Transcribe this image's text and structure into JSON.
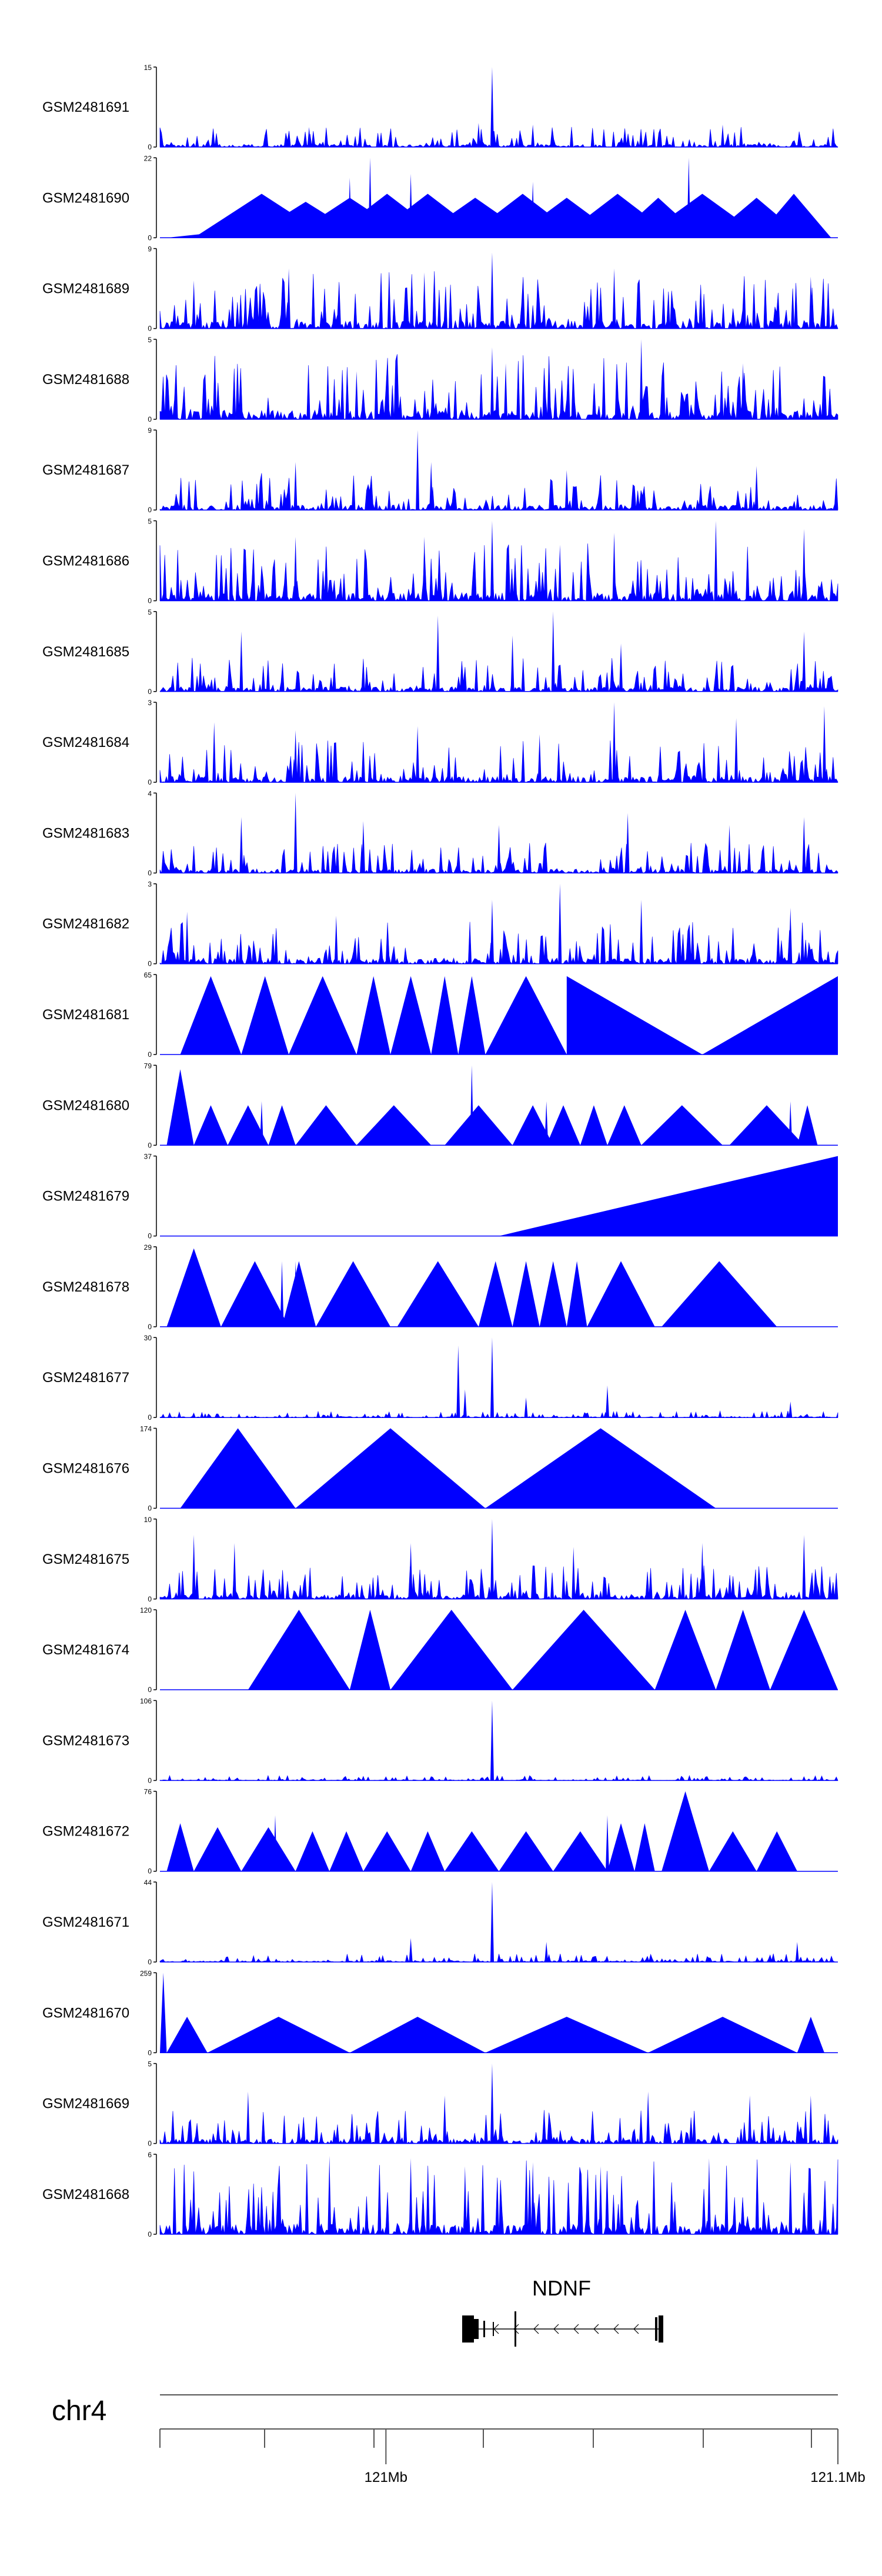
{
  "chart_data": {
    "type": "area",
    "title": "",
    "fill_color": "#0000ff",
    "chromosome": "chr4",
    "xlim_mb": [
      120.95,
      121.1
    ],
    "x_ticks": [
      {
        "value": 121.0,
        "label": "121Mb"
      },
      {
        "value": 121.1,
        "label": "121.1Mb"
      }
    ],
    "gene": {
      "name": "NDNF",
      "strand": "-"
    },
    "tracks": [
      {
        "name": "GSM2481691",
        "ymin": "0",
        "ymax": "15",
        "max": 15,
        "style": "dense",
        "level": 0.12,
        "spikes": [
          [
            0.49,
            1.0
          ],
          [
            0.47,
            0.3
          ],
          [
            0.55,
            0.28
          ],
          [
            0.22,
            0.25
          ],
          [
            0.83,
            0.28
          ]
        ]
      },
      {
        "name": "GSM2481690",
        "ymin": "0",
        "ymax": "22",
        "max": 22,
        "style": "tri",
        "peaks": [
          [
            0.01,
            0.12,
            0.05
          ],
          [
            0.05,
            0.25,
            0.55
          ],
          [
            0.13,
            0.3,
            0.45
          ],
          [
            0.19,
            0.37,
            0.5
          ],
          [
            0.25,
            0.42,
            0.55
          ],
          [
            0.31,
            0.48,
            0.55
          ],
          [
            0.38,
            0.55,
            0.5
          ],
          [
            0.45,
            0.62,
            0.55
          ],
          [
            0.52,
            0.68,
            0.5
          ],
          [
            0.59,
            0.76,
            0.55
          ],
          [
            0.67,
            0.8,
            0.5
          ],
          [
            0.71,
            0.89,
            0.55
          ],
          [
            0.81,
            0.95,
            0.5
          ],
          [
            0.88,
            0.99,
            0.55
          ]
        ],
        "spikes": [
          [
            0.31,
            1.0
          ],
          [
            0.78,
            1.0
          ],
          [
            0.37,
            0.8
          ],
          [
            0.55,
            0.7
          ],
          [
            0.28,
            0.75
          ]
        ]
      },
      {
        "name": "GSM2481689",
        "ymin": "0",
        "ymax": "9",
        "max": 9,
        "style": "dense",
        "level": 0.35,
        "spikes": [
          [
            0.49,
            0.95
          ],
          [
            0.05,
            0.6
          ],
          [
            0.19,
            0.75
          ],
          [
            0.39,
            0.7
          ],
          [
            0.67,
            0.75
          ],
          [
            0.96,
            0.65
          ]
        ]
      },
      {
        "name": "GSM2481688",
        "ymin": "0",
        "ymax": "5",
        "max": 5,
        "style": "dense",
        "level": 0.4,
        "spikes": [
          [
            0.49,
            0.9
          ],
          [
            0.51,
            0.7
          ],
          [
            0.71,
            1.0
          ],
          [
            0.29,
            0.6
          ],
          [
            0.86,
            0.7
          ]
        ]
      },
      {
        "name": "GSM2481687",
        "ymin": "0",
        "ymax": "9",
        "max": 9,
        "style": "dense",
        "level": 0.22,
        "spikes": [
          [
            0.38,
            1.0
          ],
          [
            0.4,
            0.6
          ],
          [
            0.2,
            0.6
          ],
          [
            0.88,
            0.55
          ],
          [
            0.6,
            0.5
          ]
        ]
      },
      {
        "name": "GSM2481686",
        "ymin": "0",
        "ymax": "5",
        "max": 5,
        "style": "dense",
        "level": 0.35,
        "spikes": [
          [
            0.49,
            1.0
          ],
          [
            0.82,
            1.0
          ],
          [
            0.39,
            0.8
          ],
          [
            0.2,
            0.8
          ],
          [
            0.67,
            0.85
          ],
          [
            0.95,
            0.9
          ],
          [
            0.59,
            0.7
          ]
        ]
      },
      {
        "name": "GSM2481685",
        "ymin": "0",
        "ymax": "5",
        "max": 5,
        "style": "dense",
        "level": 0.2,
        "spikes": [
          [
            0.58,
            1.0
          ],
          [
            0.41,
            0.95
          ],
          [
            0.12,
            0.75
          ],
          [
            0.52,
            0.7
          ],
          [
            0.95,
            0.75
          ],
          [
            0.68,
            0.6
          ]
        ]
      },
      {
        "name": "GSM2481684",
        "ymin": "0",
        "ymax": "3",
        "max": 3,
        "style": "dense",
        "level": 0.25,
        "spikes": [
          [
            0.67,
            1.0
          ],
          [
            0.98,
            0.95
          ],
          [
            0.08,
            0.75
          ],
          [
            0.2,
            0.65
          ],
          [
            0.38,
            0.7
          ],
          [
            0.85,
            0.8
          ],
          [
            0.56,
            0.6
          ]
        ]
      },
      {
        "name": "GSM2481683",
        "ymin": "0",
        "ymax": "4",
        "max": 4,
        "style": "dense",
        "level": 0.18,
        "spikes": [
          [
            0.2,
            1.0
          ],
          [
            0.12,
            0.7
          ],
          [
            0.3,
            0.65
          ],
          [
            0.5,
            0.6
          ],
          [
            0.69,
            0.75
          ],
          [
            0.84,
            0.6
          ],
          [
            0.95,
            0.7
          ]
        ]
      },
      {
        "name": "GSM2481682",
        "ymin": "0",
        "ymax": "3",
        "max": 3,
        "style": "dense",
        "level": 0.25,
        "spikes": [
          [
            0.59,
            1.0
          ],
          [
            0.49,
            0.8
          ],
          [
            0.71,
            0.8
          ],
          [
            0.04,
            0.65
          ],
          [
            0.26,
            0.6
          ],
          [
            0.93,
            0.7
          ]
        ]
      },
      {
        "name": "GSM2481681",
        "ymin": "0",
        "ymax": "65",
        "max": 65,
        "style": "tri",
        "peaks": [
          [
            0.03,
            0.12,
            0.98
          ],
          [
            0.12,
            0.19,
            0.98
          ],
          [
            0.19,
            0.29,
            0.98
          ],
          [
            0.29,
            0.34,
            0.98
          ],
          [
            0.34,
            0.4,
            0.98
          ],
          [
            0.4,
            0.44,
            0.98
          ],
          [
            0.44,
            0.48,
            0.98
          ],
          [
            0.48,
            0.6,
            0.98
          ]
        ],
        "ramps": [
          [
            0.6,
            0.8,
            0.98,
            0
          ],
          [
            0.8,
            1.0,
            0,
            0.98
          ]
        ],
        "spikes": []
      },
      {
        "name": "GSM2481680",
        "ymin": "0",
        "ymax": "79",
        "max": 79,
        "style": "tri",
        "peaks": [
          [
            0.01,
            0.05,
            0.95
          ],
          [
            0.05,
            0.1,
            0.5
          ],
          [
            0.1,
            0.16,
            0.5
          ],
          [
            0.16,
            0.2,
            0.5
          ],
          [
            0.2,
            0.29,
            0.5
          ],
          [
            0.29,
            0.4,
            0.5
          ],
          [
            0.42,
            0.52,
            0.5
          ],
          [
            0.52,
            0.58,
            0.5
          ],
          [
            0.57,
            0.62,
            0.5
          ],
          [
            0.62,
            0.66,
            0.5
          ],
          [
            0.66,
            0.71,
            0.5
          ],
          [
            0.71,
            0.83,
            0.5
          ],
          [
            0.84,
            0.95,
            0.5
          ],
          [
            0.94,
            0.97,
            0.5
          ]
        ],
        "spikes": [
          [
            0.46,
            1.0
          ],
          [
            0.15,
            0.55
          ],
          [
            0.57,
            0.55
          ],
          [
            0.93,
            0.55
          ]
        ]
      },
      {
        "name": "GSM2481679",
        "ymin": "0",
        "ymax": "37",
        "max": 37,
        "style": "tri",
        "peaks": [],
        "ramps": [
          [
            0.5,
            1.0,
            0,
            1.0
          ]
        ],
        "spikes": []
      },
      {
        "name": "GSM2481678",
        "ymin": "0",
        "ymax": "29",
        "max": 29,
        "style": "tri",
        "peaks": [
          [
            0.01,
            0.09,
            0.98
          ],
          [
            0.09,
            0.19,
            0.82
          ],
          [
            0.18,
            0.23,
            0.82
          ],
          [
            0.23,
            0.34,
            0.82
          ],
          [
            0.35,
            0.47,
            0.82
          ],
          [
            0.47,
            0.52,
            0.82
          ],
          [
            0.52,
            0.56,
            0.82
          ],
          [
            0.56,
            0.6,
            0.82
          ],
          [
            0.6,
            0.63,
            0.82
          ],
          [
            0.63,
            0.73,
            0.82
          ],
          [
            0.74,
            0.91,
            0.82
          ]
        ],
        "spikes": [
          [
            0.18,
            0.82
          ],
          [
            0.2,
            0.82
          ]
        ]
      },
      {
        "name": "GSM2481677",
        "ymin": "0",
        "ymax": "30",
        "max": 30,
        "style": "dense",
        "level": 0.04,
        "spikes": [
          [
            0.49,
            1.0
          ],
          [
            0.44,
            0.9
          ],
          [
            0.45,
            0.35
          ],
          [
            0.66,
            0.4
          ],
          [
            0.54,
            0.25
          ],
          [
            0.93,
            0.2
          ]
        ]
      },
      {
        "name": "GSM2481676",
        "ymin": "0",
        "ymax": "174",
        "max": 174,
        "style": "tri",
        "peaks": [
          [
            0.03,
            0.2,
            1.0
          ],
          [
            0.2,
            0.48,
            1.0
          ],
          [
            0.48,
            0.82,
            1.0
          ]
        ],
        "spikes": []
      },
      {
        "name": "GSM2481675",
        "ymin": "0",
        "ymax": "10",
        "max": 10,
        "style": "dense",
        "level": 0.2,
        "spikes": [
          [
            0.49,
            1.0
          ],
          [
            0.05,
            0.8
          ],
          [
            0.11,
            0.7
          ],
          [
            0.37,
            0.7
          ],
          [
            0.61,
            0.65
          ],
          [
            0.8,
            0.7
          ],
          [
            0.95,
            0.8
          ]
        ]
      },
      {
        "name": "GSM2481674",
        "ymin": "0",
        "ymax": "120",
        "max": 120,
        "style": "tri",
        "peaks": [
          [
            0.13,
            0.28,
            1.0
          ],
          [
            0.28,
            0.34,
            1.0
          ],
          [
            0.34,
            0.52,
            1.0
          ],
          [
            0.52,
            0.73,
            1.0
          ],
          [
            0.73,
            0.82,
            1.0
          ],
          [
            0.82,
            0.9,
            1.0
          ],
          [
            0.9,
            1.0,
            1.0
          ]
        ],
        "spikes": []
      },
      {
        "name": "GSM2481673",
        "ymin": "0",
        "ymax": "106",
        "max": 106,
        "style": "dense",
        "level": 0.03,
        "spikes": [
          [
            0.49,
            1.0
          ]
        ]
      },
      {
        "name": "GSM2481672",
        "ymin": "0",
        "ymax": "76",
        "max": 76,
        "style": "tri",
        "peaks": [
          [
            0.01,
            0.05,
            0.6
          ],
          [
            0.05,
            0.12,
            0.55
          ],
          [
            0.12,
            0.2,
            0.55
          ],
          [
            0.2,
            0.25,
            0.5
          ],
          [
            0.25,
            0.3,
            0.5
          ],
          [
            0.3,
            0.37,
            0.5
          ],
          [
            0.37,
            0.42,
            0.5
          ],
          [
            0.42,
            0.5,
            0.5
          ],
          [
            0.5,
            0.58,
            0.5
          ],
          [
            0.58,
            0.66,
            0.5
          ],
          [
            0.66,
            0.7,
            0.6
          ],
          [
            0.7,
            0.73,
            0.6
          ],
          [
            0.74,
            0.81,
            1.0
          ],
          [
            0.81,
            0.88,
            0.5
          ],
          [
            0.88,
            0.94,
            0.5
          ]
        ],
        "spikes": [
          [
            0.17,
            0.7
          ],
          [
            0.66,
            0.7
          ]
        ]
      },
      {
        "name": "GSM2481671",
        "ymin": "0",
        "ymax": "44",
        "max": 44,
        "style": "dense",
        "level": 0.05,
        "spikes": [
          [
            0.49,
            1.0
          ],
          [
            0.37,
            0.3
          ],
          [
            0.57,
            0.25
          ],
          [
            0.94,
            0.25
          ]
        ]
      },
      {
        "name": "GSM2481670",
        "ymin": "0",
        "ymax": "259",
        "max": 259,
        "style": "tri",
        "peaks": [
          [
            0.0,
            0.01,
            1.0
          ],
          [
            0.01,
            0.07,
            0.45
          ],
          [
            0.07,
            0.28,
            0.45
          ],
          [
            0.28,
            0.48,
            0.45
          ],
          [
            0.48,
            0.72,
            0.45
          ],
          [
            0.72,
            0.94,
            0.45
          ],
          [
            0.94,
            0.98,
            0.45
          ]
        ],
        "spikes": []
      },
      {
        "name": "GSM2481669",
        "ymin": "0",
        "ymax": "5",
        "max": 5,
        "style": "dense",
        "level": 0.2,
        "spikes": [
          [
            0.49,
            1.0
          ],
          [
            0.13,
            0.65
          ],
          [
            0.42,
            0.6
          ],
          [
            0.72,
            0.65
          ],
          [
            0.87,
            0.6
          ],
          [
            0.96,
            0.6
          ]
        ]
      },
      {
        "name": "GSM2481668",
        "ymin": "0",
        "ymax": "6",
        "max": 6,
        "style": "dense",
        "level": 0.45,
        "spikes": [
          [
            0.25,
            0.98
          ],
          [
            0.37,
            0.95
          ],
          [
            0.55,
            0.9
          ],
          [
            0.81,
            0.95
          ],
          [
            0.93,
            0.9
          ],
          [
            0.65,
            0.85
          ],
          [
            0.45,
            0.85
          ]
        ]
      }
    ]
  }
}
